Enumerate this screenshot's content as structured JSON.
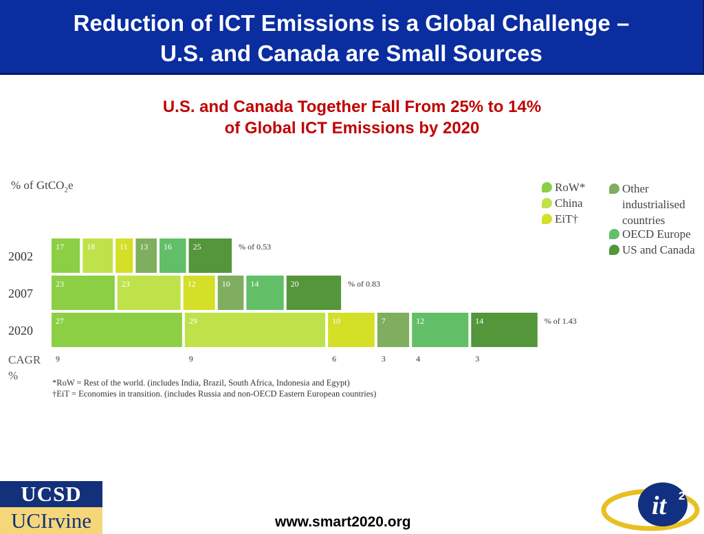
{
  "header": {
    "title_line1": "Reduction of ICT Emissions is a Global Challenge –",
    "title_line2": "U.S. and Canada are Small Sources"
  },
  "subtitle": {
    "line1": "U.S. and Canada Together Fall From 25% to 14%",
    "line2": "of Global ICT Emissions by 2020"
  },
  "chart_data": {
    "type": "bar",
    "stacked_percent": true,
    "y_unit_label": {
      "prefix": "% of GtCO",
      "sub": "2",
      "suffix": "e"
    },
    "categories": [
      "2002",
      "2007",
      "2020"
    ],
    "totals": [
      "% of 0.53",
      "% of 0.83",
      "% of 1.43"
    ],
    "series": [
      {
        "name": "RoW*",
        "color": "#8ccf45",
        "values": [
          17,
          23,
          27
        ],
        "cagr": "9"
      },
      {
        "name": "China",
        "color": "#bfe24a",
        "values": [
          18,
          23,
          29
        ],
        "cagr": "9"
      },
      {
        "name": "EiT†",
        "color": "#d4df28",
        "values": [
          11,
          12,
          10
        ],
        "cagr": "6"
      },
      {
        "name": "Other industrialised countries",
        "color": "#7fae5e",
        "values": [
          13,
          10,
          7
        ],
        "cagr": "3"
      },
      {
        "name": "OECD Europe",
        "color": "#62bf68",
        "values": [
          16,
          14,
          12
        ],
        "cagr": "4"
      },
      {
        "name": "US and Canada",
        "color": "#54963a",
        "values": [
          25,
          20,
          14
        ],
        "cagr": "3"
      }
    ],
    "cagr_label_line1": "CAGR",
    "cagr_label_line2": "%"
  },
  "legend": {
    "row": "RoW*",
    "china": "China",
    "eit": "EiT†",
    "other_line1": "Other",
    "other_line2": "industrialised",
    "other_line3": "countries",
    "oecd": "OECD Europe",
    "us": "US and Canada"
  },
  "footnotes": {
    "row": "*RoW = Rest of the world. (includes India, Brazil, South Africa, Indonesia and Egypt)",
    "eit": "†EiT = Economies in transition. (includes Russia and non-OECD Eastern European countries)"
  },
  "footer": {
    "url": "www.smart2020.org",
    "ucsd": "UCSD",
    "uci": "UCIrvine",
    "it2": "it",
    "it2_sup": "2"
  },
  "colors": {
    "header_bg": "#0a2da0",
    "subtitle": "#c00000"
  }
}
